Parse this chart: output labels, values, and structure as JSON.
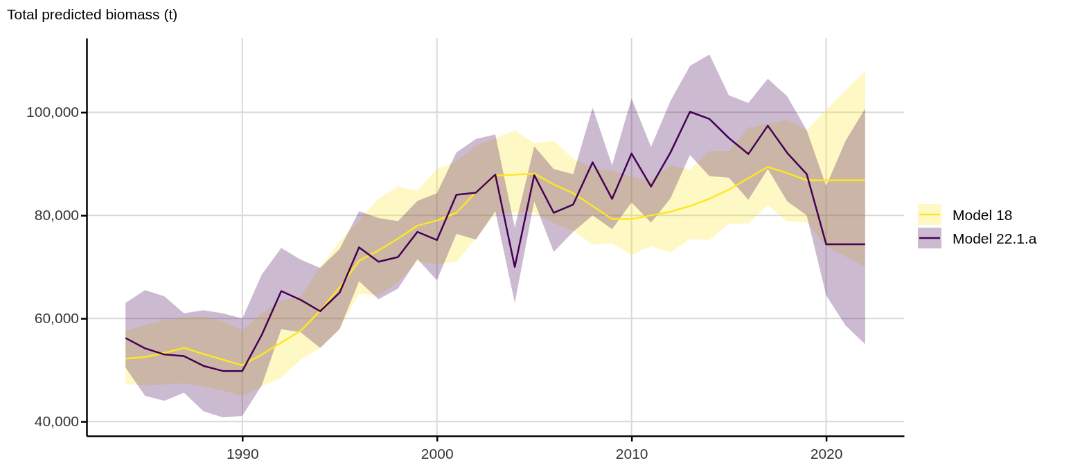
{
  "chart_data": {
    "type": "line",
    "ylabel": "Total predicted biomass (t)",
    "x": [
      1984,
      1985,
      1986,
      1987,
      1988,
      1989,
      1990,
      1991,
      1992,
      1993,
      1994,
      1995,
      1996,
      1997,
      1998,
      1999,
      2000,
      2001,
      2002,
      2003,
      2004,
      2005,
      2006,
      2007,
      2008,
      2009,
      2010,
      2011,
      2012,
      2013,
      2014,
      2015,
      2016,
      2017,
      2018,
      2019,
      2020,
      2021,
      2022
    ],
    "series": [
      {
        "name": "Model 18",
        "color": "#fde725",
        "values": [
          52200,
          52500,
          53300,
          54300,
          53100,
          52000,
          50900,
          53000,
          55300,
          57600,
          61500,
          66000,
          71200,
          73200,
          75500,
          78000,
          79000,
          80500,
          84500,
          87700,
          87900,
          88100,
          86000,
          84300,
          81800,
          79300,
          79300,
          80000,
          80700,
          81800,
          83200,
          85000,
          87200,
          89400,
          88200,
          86800,
          86800,
          86800,
          86800
        ],
        "lower": [
          47300,
          47000,
          47200,
          47400,
          46800,
          46000,
          45000,
          46800,
          48500,
          52000,
          54200,
          58000,
          64800,
          64500,
          67000,
          71000,
          70500,
          71000,
          75500,
          80300,
          80500,
          80500,
          78500,
          77000,
          74300,
          74600,
          72300,
          74000,
          72800,
          75400,
          75200,
          78400,
          78400,
          82000,
          78800,
          78700,
          74000,
          72000,
          70000
        ],
        "upper": [
          57600,
          58700,
          59700,
          60200,
          60300,
          59500,
          57700,
          61000,
          63500,
          64300,
          70000,
          75000,
          79000,
          83300,
          85600,
          84800,
          89000,
          90500,
          93500,
          95000,
          96500,
          94000,
          94500,
          91000,
          89200,
          88600,
          87500,
          86800,
          89700,
          88900,
          92500,
          92500,
          97000,
          97800,
          98500,
          96500,
          100500,
          104300,
          108000
        ]
      },
      {
        "name": "Model 22.1.a",
        "color": "#440154",
        "values": [
          56200,
          54200,
          53000,
          52700,
          50800,
          49800,
          49800,
          56800,
          65300,
          63600,
          61400,
          65000,
          73800,
          71000,
          71900,
          76800,
          75200,
          84000,
          84400,
          87900,
          70000,
          87800,
          80500,
          82100,
          90300,
          83200,
          92000,
          85600,
          92200,
          100100,
          98700,
          95000,
          91900,
          97400,
          92100,
          88000,
          74400,
          74400,
          74400
        ],
        "lower": [
          50500,
          45000,
          44000,
          45600,
          42000,
          40800,
          41100,
          47000,
          57900,
          57300,
          54300,
          57900,
          67200,
          63700,
          65800,
          71500,
          67400,
          76400,
          75300,
          80800,
          63000,
          82700,
          72900,
          76800,
          80000,
          77300,
          82500,
          78600,
          83300,
          91700,
          87600,
          87300,
          83000,
          89000,
          82700,
          80000,
          64500,
          58600,
          55000
        ],
        "upper": [
          63000,
          65500,
          64300,
          61000,
          61600,
          61000,
          60000,
          68500,
          73700,
          71400,
          69800,
          73500,
          80800,
          79500,
          78900,
          82800,
          84300,
          92200,
          94800,
          95700,
          77600,
          93400,
          89000,
          88000,
          100900,
          89700,
          102700,
          93300,
          102200,
          109000,
          111200,
          103300,
          101800,
          106500,
          103100,
          96500,
          85700,
          94500,
          100700
        ]
      }
    ],
    "xlim": [
      1982,
      2024
    ],
    "xticks": [
      1990,
      2000,
      2010,
      2020
    ],
    "ylim": [
      37200,
      114400
    ],
    "yticks": [
      {
        "value": 40000,
        "label": "40,000"
      },
      {
        "value": 60000,
        "label": "60,000"
      },
      {
        "value": 80000,
        "label": "80,000"
      },
      {
        "value": 100000,
        "label": "100,000"
      }
    ],
    "grid": true,
    "legend": "right",
    "line_style": "solid",
    "marker": "none"
  }
}
